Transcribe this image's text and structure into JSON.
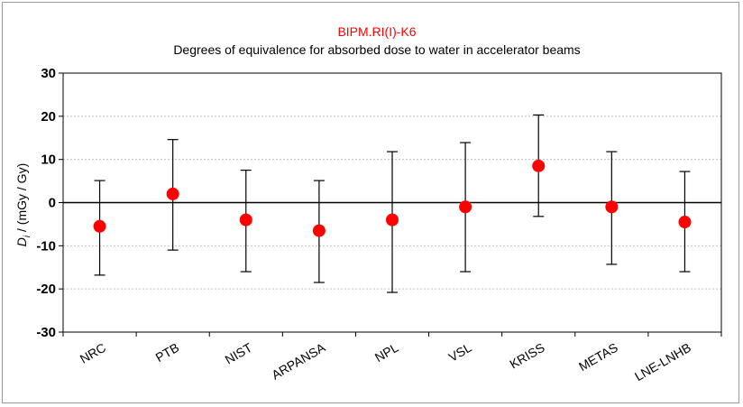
{
  "chart_data": {
    "type": "scatter",
    "title": "BIPM.RI(I)-K6",
    "subtitle": "Degrees of equivalence for absorbed dose to water in accelerator beams",
    "ylabel": "D_i / (mGy / Gy)",
    "ylabel_parts": {
      "symbol": "D",
      "subscript": "i",
      "rest": " / (mGy / Gy)"
    },
    "ylim": [
      -30,
      30
    ],
    "yticks": [
      "-30",
      "-20",
      "-10",
      "0",
      "10",
      "20",
      "30"
    ],
    "grid": true,
    "categories": [
      "NRC",
      "PTB",
      "NIST",
      "ARPANSA",
      "NPL",
      "VSL",
      "KRISS",
      "METAS",
      "LNE-LNHB"
    ],
    "series": [
      {
        "values": [
          -5.5,
          2.0,
          -4.0,
          -6.5,
          -4.0,
          -1.0,
          8.5,
          -1.0,
          -4.5
        ],
        "error_low": [
          -16.8,
          -11.0,
          -16.0,
          -18.5,
          -20.8,
          -16.0,
          -3.2,
          -14.3,
          -16.0
        ],
        "error_high": [
          5.1,
          14.6,
          7.5,
          5.1,
          11.8,
          13.9,
          20.3,
          11.8,
          7.2
        ]
      }
    ],
    "colors": {
      "marker": "#ff0000",
      "title": "#ff0000",
      "error_bar": "#000000",
      "grid": "#c0c0c0",
      "zero_line": "#000000"
    }
  }
}
